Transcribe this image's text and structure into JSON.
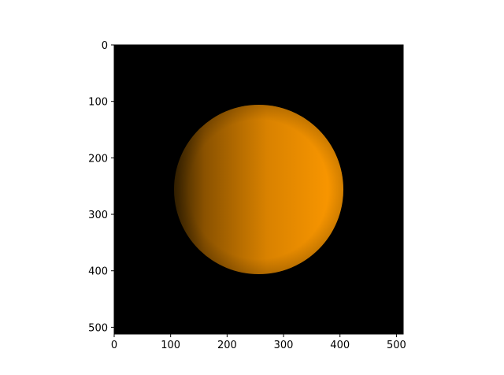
{
  "chart_data": {
    "type": "heatmap",
    "title": "",
    "xlabel": "",
    "ylabel": "",
    "image_size": [
      512,
      512
    ],
    "xlim": [
      0,
      512
    ],
    "ylim": [
      512,
      0
    ],
    "y_inverted": true,
    "xticks": [
      0,
      100,
      200,
      300,
      400,
      500
    ],
    "yticks": [
      0,
      100,
      200,
      300,
      400,
      500
    ],
    "grid": false,
    "legend": "none",
    "background_color": "#000000",
    "sphere": {
      "center": [
        256,
        256
      ],
      "radius": 150,
      "base_color": "#ff9a00",
      "shadow_color": "#3a2400",
      "lighting": "lit from the right, darkening toward the left edge"
    }
  }
}
